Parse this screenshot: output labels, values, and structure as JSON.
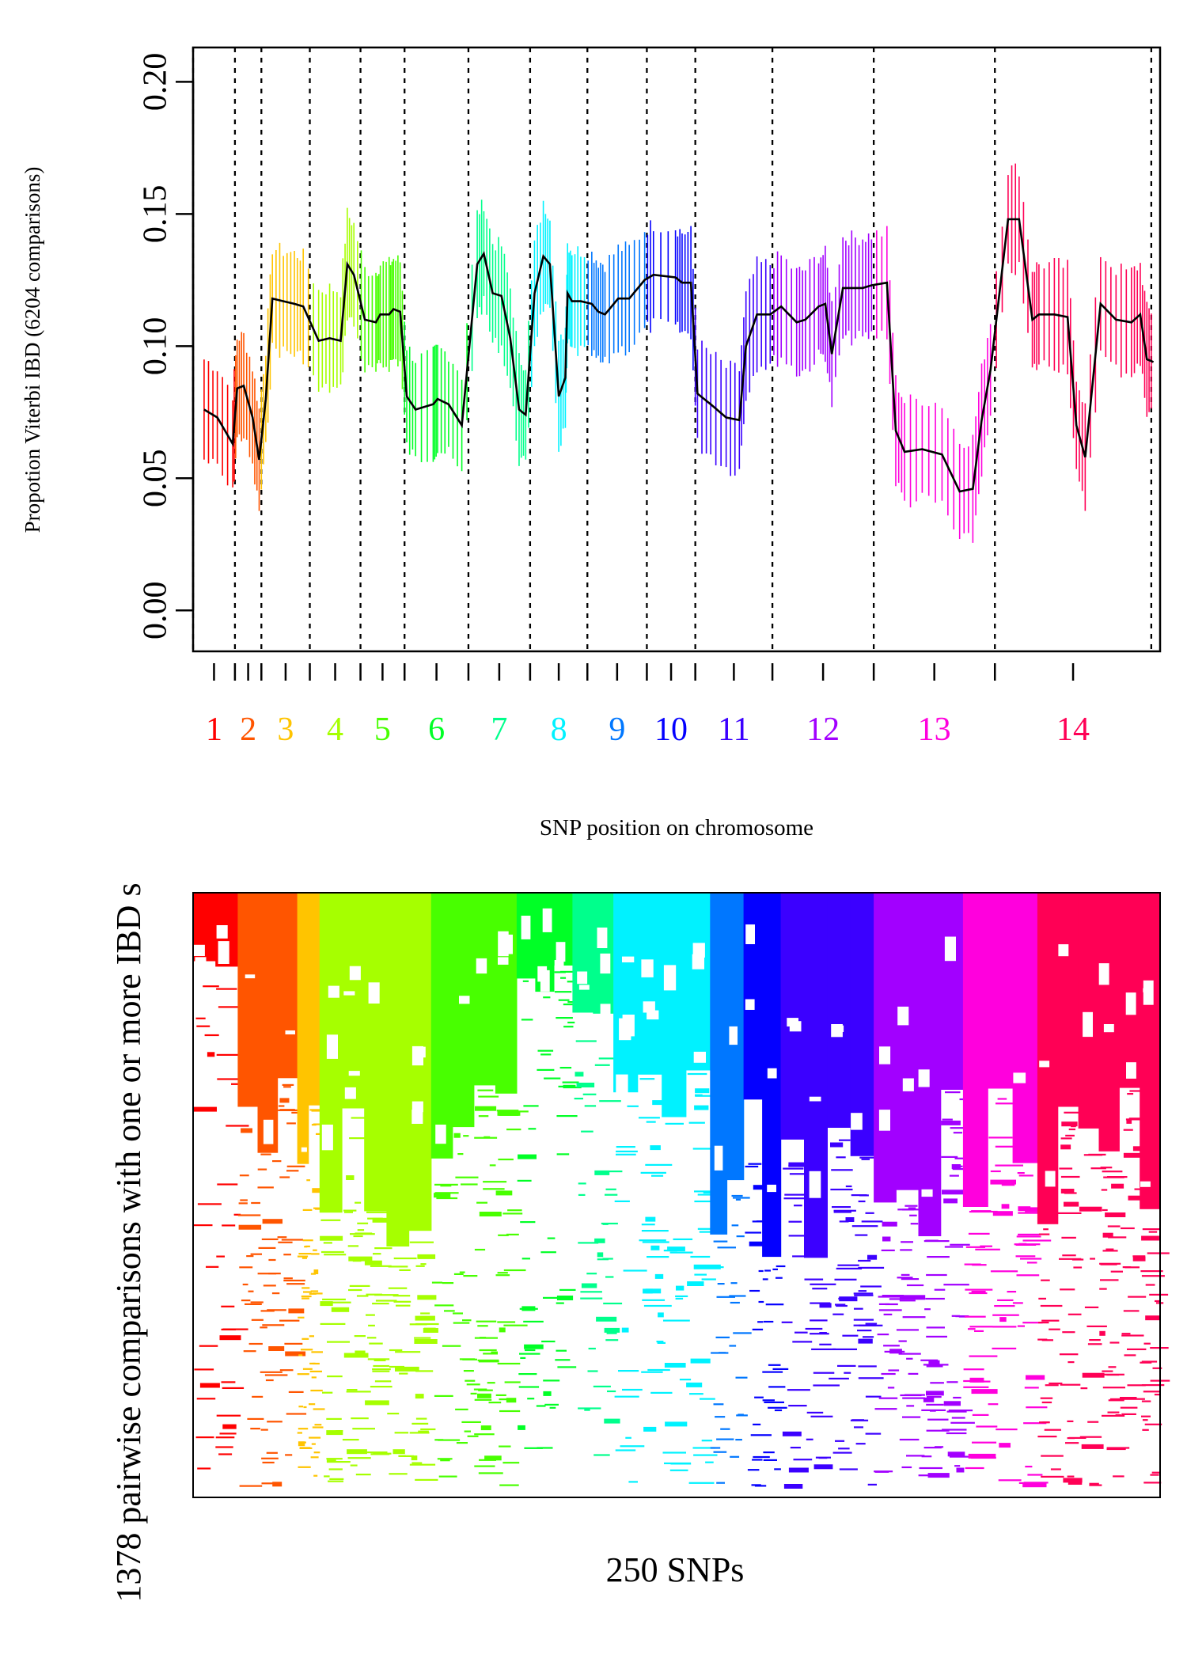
{
  "chart_data": [
    {
      "type": "line",
      "ylabel": "Propotion Viterbi IBD (6204 comparisons)",
      "xlabel": "SNP position on chromosome",
      "ylim": [
        0.0,
        0.2
      ],
      "y_ticks": [
        "0.00",
        "0.05",
        "0.10",
        "0.15",
        "0.20"
      ],
      "chromosomes": [
        "1",
        "2",
        "3",
        "4",
        "5",
        "6",
        "7",
        "8",
        "9",
        "10",
        "11",
        "12",
        "13",
        "14"
      ],
      "chromosome_colors": [
        "#FF0000",
        "#FF5500",
        "#FFC400",
        "#A6FF00",
        "#48FF00",
        "#00FF26",
        "#00FF8C",
        "#00F2FF",
        "#0077FF",
        "#0400FF",
        "#3B00FF",
        "#A200FF",
        "#FF00DD",
        "#FF0055"
      ],
      "grid": false,
      "series": [
        {
          "values": [
            [
              1,
              0.076
            ],
            [
              1.6,
              0.073
            ],
            [
              2.3,
              0.063
            ],
            [
              2.5,
              0.084
            ],
            [
              2.8,
              0.085
            ],
            [
              3.2,
              0.073
            ],
            [
              3.5,
              0.057
            ],
            [
              3.8,
              0.08
            ],
            [
              4.1,
              0.118
            ],
            [
              4.6,
              0.117
            ],
            [
              5.1,
              0.116
            ],
            [
              5.5,
              0.115
            ],
            [
              6.2,
              0.102
            ],
            [
              6.7,
              0.103
            ],
            [
              7.2,
              0.102
            ],
            [
              7.5,
              0.131
            ],
            [
              7.8,
              0.127
            ],
            [
              8.3,
              0.11
            ],
            [
              8.8,
              0.109
            ],
            [
              9.0,
              0.112
            ],
            [
              9.4,
              0.112
            ],
            [
              9.6,
              0.114
            ],
            [
              9.9,
              0.113
            ],
            [
              10.2,
              0.081
            ],
            [
              10.6,
              0.076
            ],
            [
              11.4,
              0.078
            ],
            [
              11.6,
              0.08
            ],
            [
              12.1,
              0.078
            ],
            [
              12.7,
              0.07
            ],
            [
              13.4,
              0.131
            ],
            [
              13.7,
              0.135
            ],
            [
              14.1,
              0.12
            ],
            [
              14.5,
              0.119
            ],
            [
              14.9,
              0.103
            ],
            [
              15.3,
              0.076
            ],
            [
              15.6,
              0.074
            ],
            [
              16.0,
              0.12
            ],
            [
              16.4,
              0.134
            ],
            [
              16.7,
              0.131
            ],
            [
              17.1,
              0.081
            ],
            [
              17.4,
              0.088
            ],
            [
              17.5,
              0.12
            ],
            [
              17.7,
              0.117
            ],
            [
              18.1,
              0.117
            ],
            [
              18.6,
              0.116
            ],
            [
              18.9,
              0.113
            ],
            [
              19.2,
              0.112
            ],
            [
              19.8,
              0.118
            ],
            [
              20.3,
              0.118
            ],
            [
              21.0,
              0.125
            ],
            [
              21.4,
              0.127
            ],
            [
              22.4,
              0.126
            ],
            [
              22.7,
              0.124
            ],
            [
              23.1,
              0.124
            ],
            [
              23.4,
              0.082
            ],
            [
              24.0,
              0.078
            ],
            [
              24.7,
              0.073
            ],
            [
              25.3,
              0.072
            ],
            [
              25.6,
              0.1
            ],
            [
              26.1,
              0.112
            ],
            [
              26.7,
              0.112
            ],
            [
              27.2,
              0.115
            ],
            [
              27.9,
              0.109
            ],
            [
              28.3,
              0.11
            ],
            [
              28.9,
              0.115
            ],
            [
              29.2,
              0.116
            ],
            [
              29.5,
              0.097
            ],
            [
              30.0,
              0.122
            ],
            [
              30.4,
              0.122
            ],
            [
              30.9,
              0.122
            ],
            [
              31.3,
              0.123
            ],
            [
              32.0,
              0.124
            ],
            [
              32.4,
              0.068
            ],
            [
              32.8,
              0.06
            ],
            [
              33.6,
              0.061
            ],
            [
              34.5,
              0.059
            ],
            [
              35.3,
              0.045
            ],
            [
              35.9,
              0.046
            ],
            [
              36.3,
              0.072
            ],
            [
              36.7,
              0.091
            ],
            [
              37.5,
              0.148
            ],
            [
              38.0,
              0.148
            ],
            [
              38.6,
              0.11
            ],
            [
              38.9,
              0.112
            ],
            [
              39.6,
              0.112
            ],
            [
              40.2,
              0.111
            ],
            [
              40.6,
              0.07
            ],
            [
              41.0,
              0.058
            ],
            [
              41.7,
              0.116
            ],
            [
              42.4,
              0.11
            ],
            [
              43.1,
              0.109
            ],
            [
              43.5,
              0.112
            ],
            [
              43.8,
              0.095
            ],
            [
              44.1,
              0.094
            ]
          ]
        }
      ],
      "_chrom_x_ranges": [
        [
          0.5,
          2.4
        ],
        [
          2.4,
          3.6
        ],
        [
          3.6,
          5.8
        ],
        [
          5.8,
          8.1
        ],
        [
          8.1,
          10.1
        ],
        [
          10.1,
          13.0
        ],
        [
          13.0,
          15.8
        ],
        [
          15.8,
          18.4
        ],
        [
          18.4,
          21.1
        ],
        [
          21.1,
          23.3
        ],
        [
          23.3,
          26.8
        ],
        [
          26.8,
          31.4
        ],
        [
          31.4,
          36.9
        ],
        [
          36.9,
          44.0
        ]
      ]
    },
    {
      "type": "heatmap",
      "xlabel": "250 SNPs",
      "ylabel": "1378 pairwise comparisons with one or more IBD s",
      "columns_by_chromosome": [
        [
          "1",
          12
        ],
        [
          "2",
          16
        ],
        [
          "3",
          6
        ],
        [
          "4",
          30
        ],
        [
          "5",
          23
        ],
        [
          "6",
          15
        ],
        [
          "7",
          11
        ],
        [
          "8",
          26
        ],
        [
          "9",
          9
        ],
        [
          "10",
          10
        ],
        [
          "11",
          25
        ],
        [
          "12",
          24
        ],
        [
          "13",
          20
        ],
        [
          "14",
          33
        ]
      ]
    }
  ]
}
